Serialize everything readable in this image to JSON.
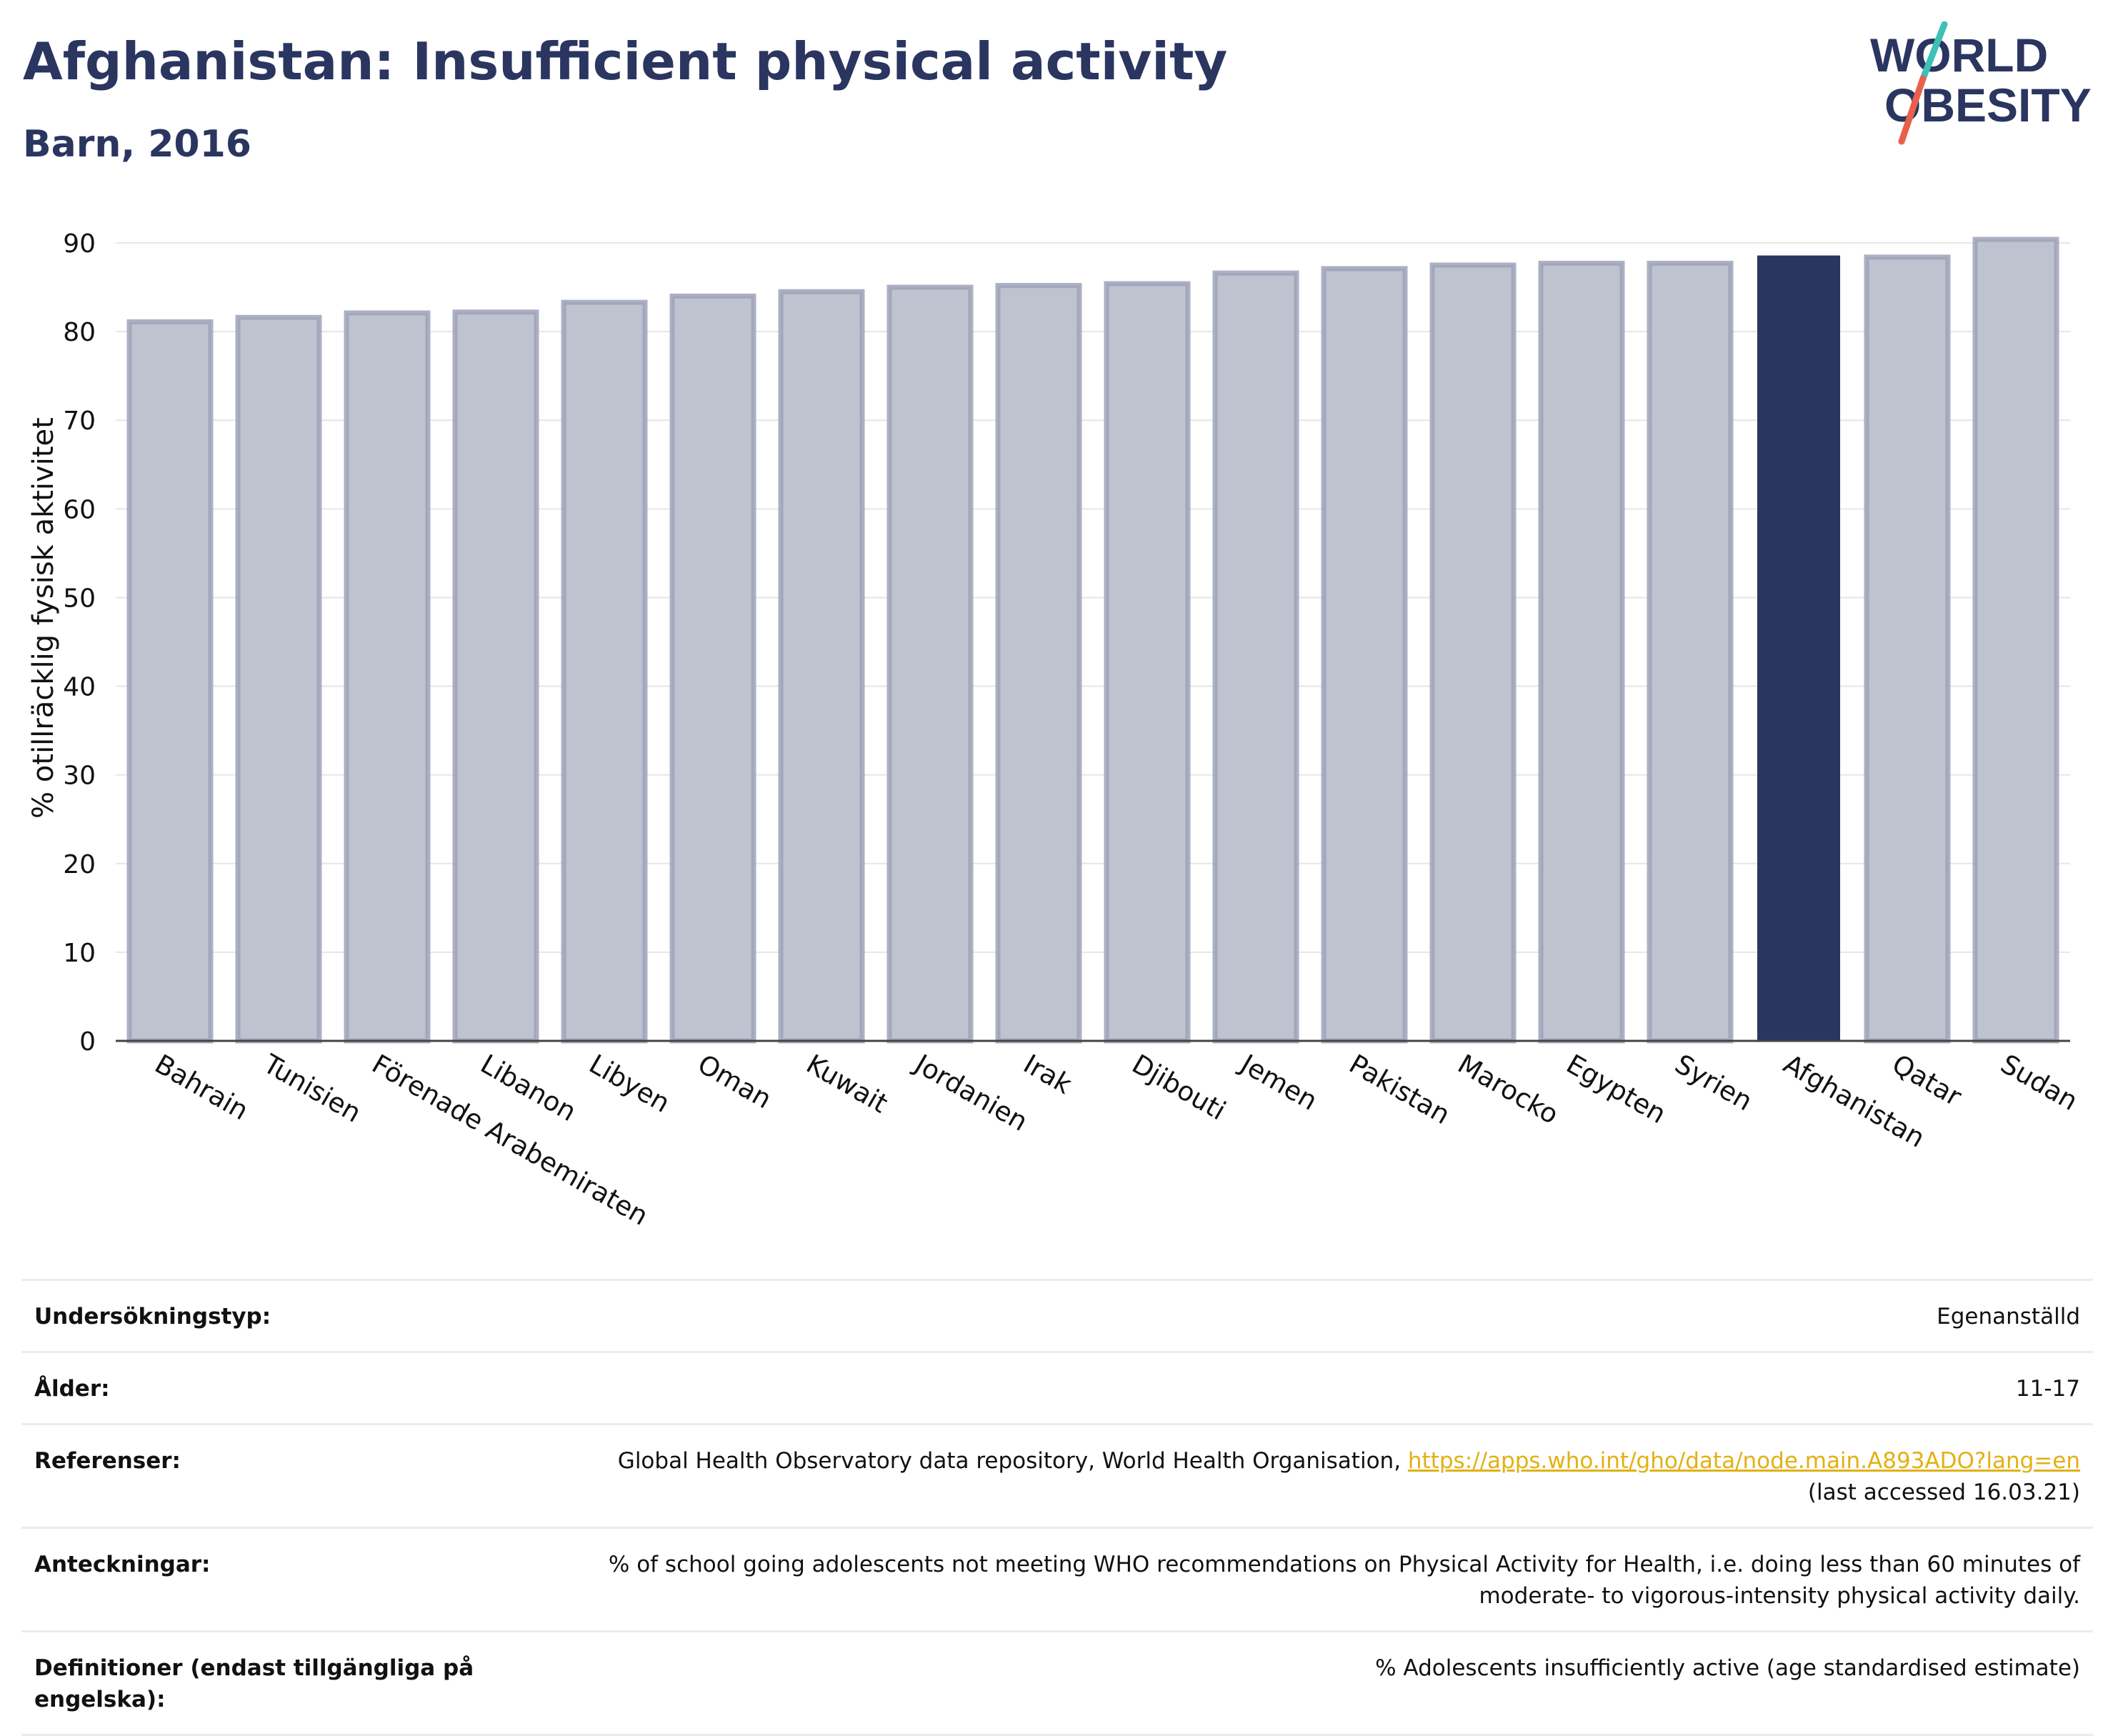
{
  "header": {
    "title": "Afghanistan: Insufficient physical activity",
    "subtitle": "Barn, 2016"
  },
  "logo": {
    "line1": "WORLD",
    "line2": "OBESITY",
    "colors": {
      "text": "#2a3560",
      "slash_teal": "#3cc0b8",
      "slash_coral": "#e8604c"
    }
  },
  "chart_data": {
    "type": "bar",
    "categories": [
      "Bahrain",
      "Tunisien",
      "Förenade Arabemiraten",
      "Libanon",
      "Libyen",
      "Oman",
      "Kuwait",
      "Jordanien",
      "Irak",
      "Djibouti",
      "Jemen",
      "Pakistan",
      "Marocko",
      "Egypten",
      "Syrien",
      "Afghanistan",
      "Qatar",
      "Sudan"
    ],
    "values": [
      81.1,
      81.6,
      82.1,
      82.2,
      83.3,
      84.0,
      84.5,
      85.0,
      85.2,
      85.4,
      86.6,
      87.1,
      87.5,
      87.7,
      87.7,
      88.5,
      88.4,
      90.4
    ],
    "highlight": "Afghanistan",
    "ylabel": "% otillräcklig fysisk aktivitet",
    "xlabel": "",
    "ylim": [
      0,
      90
    ],
    "yticks": [
      0,
      10,
      20,
      30,
      40,
      50,
      60,
      70,
      80,
      90
    ],
    "grid": true,
    "colors": {
      "bar_fill": "#bfc2cf",
      "bar_stroke": "#9da2b8",
      "highlight_fill": "#2a3560",
      "grid": "#e6e6e6",
      "axis": "#444444"
    }
  },
  "info_table": [
    {
      "label": "Undersökningstyp:",
      "value": "Egenanställd"
    },
    {
      "label": "Ålder:",
      "value": "11-17"
    },
    {
      "label": "Referenser:",
      "value": "Global Health Observatory data repository, World Health Organisation, ",
      "link": "https://apps.who.int/gho/data/node.main.A893ADO?lang=en",
      "value2": "(last accessed 16.03.21)"
    },
    {
      "label": "Anteckningar:",
      "value": "% of school going adolescents not meeting WHO recommendations on Physical Activity for Health, i.e. doing less than 60 minutes of moderate- to vigorous-intensity physical activity daily."
    },
    {
      "label": "Definitioner (endast tillgängliga på engelska):",
      "value": "% Adolescents insufficiently active (age standardised estimate)"
    }
  ]
}
